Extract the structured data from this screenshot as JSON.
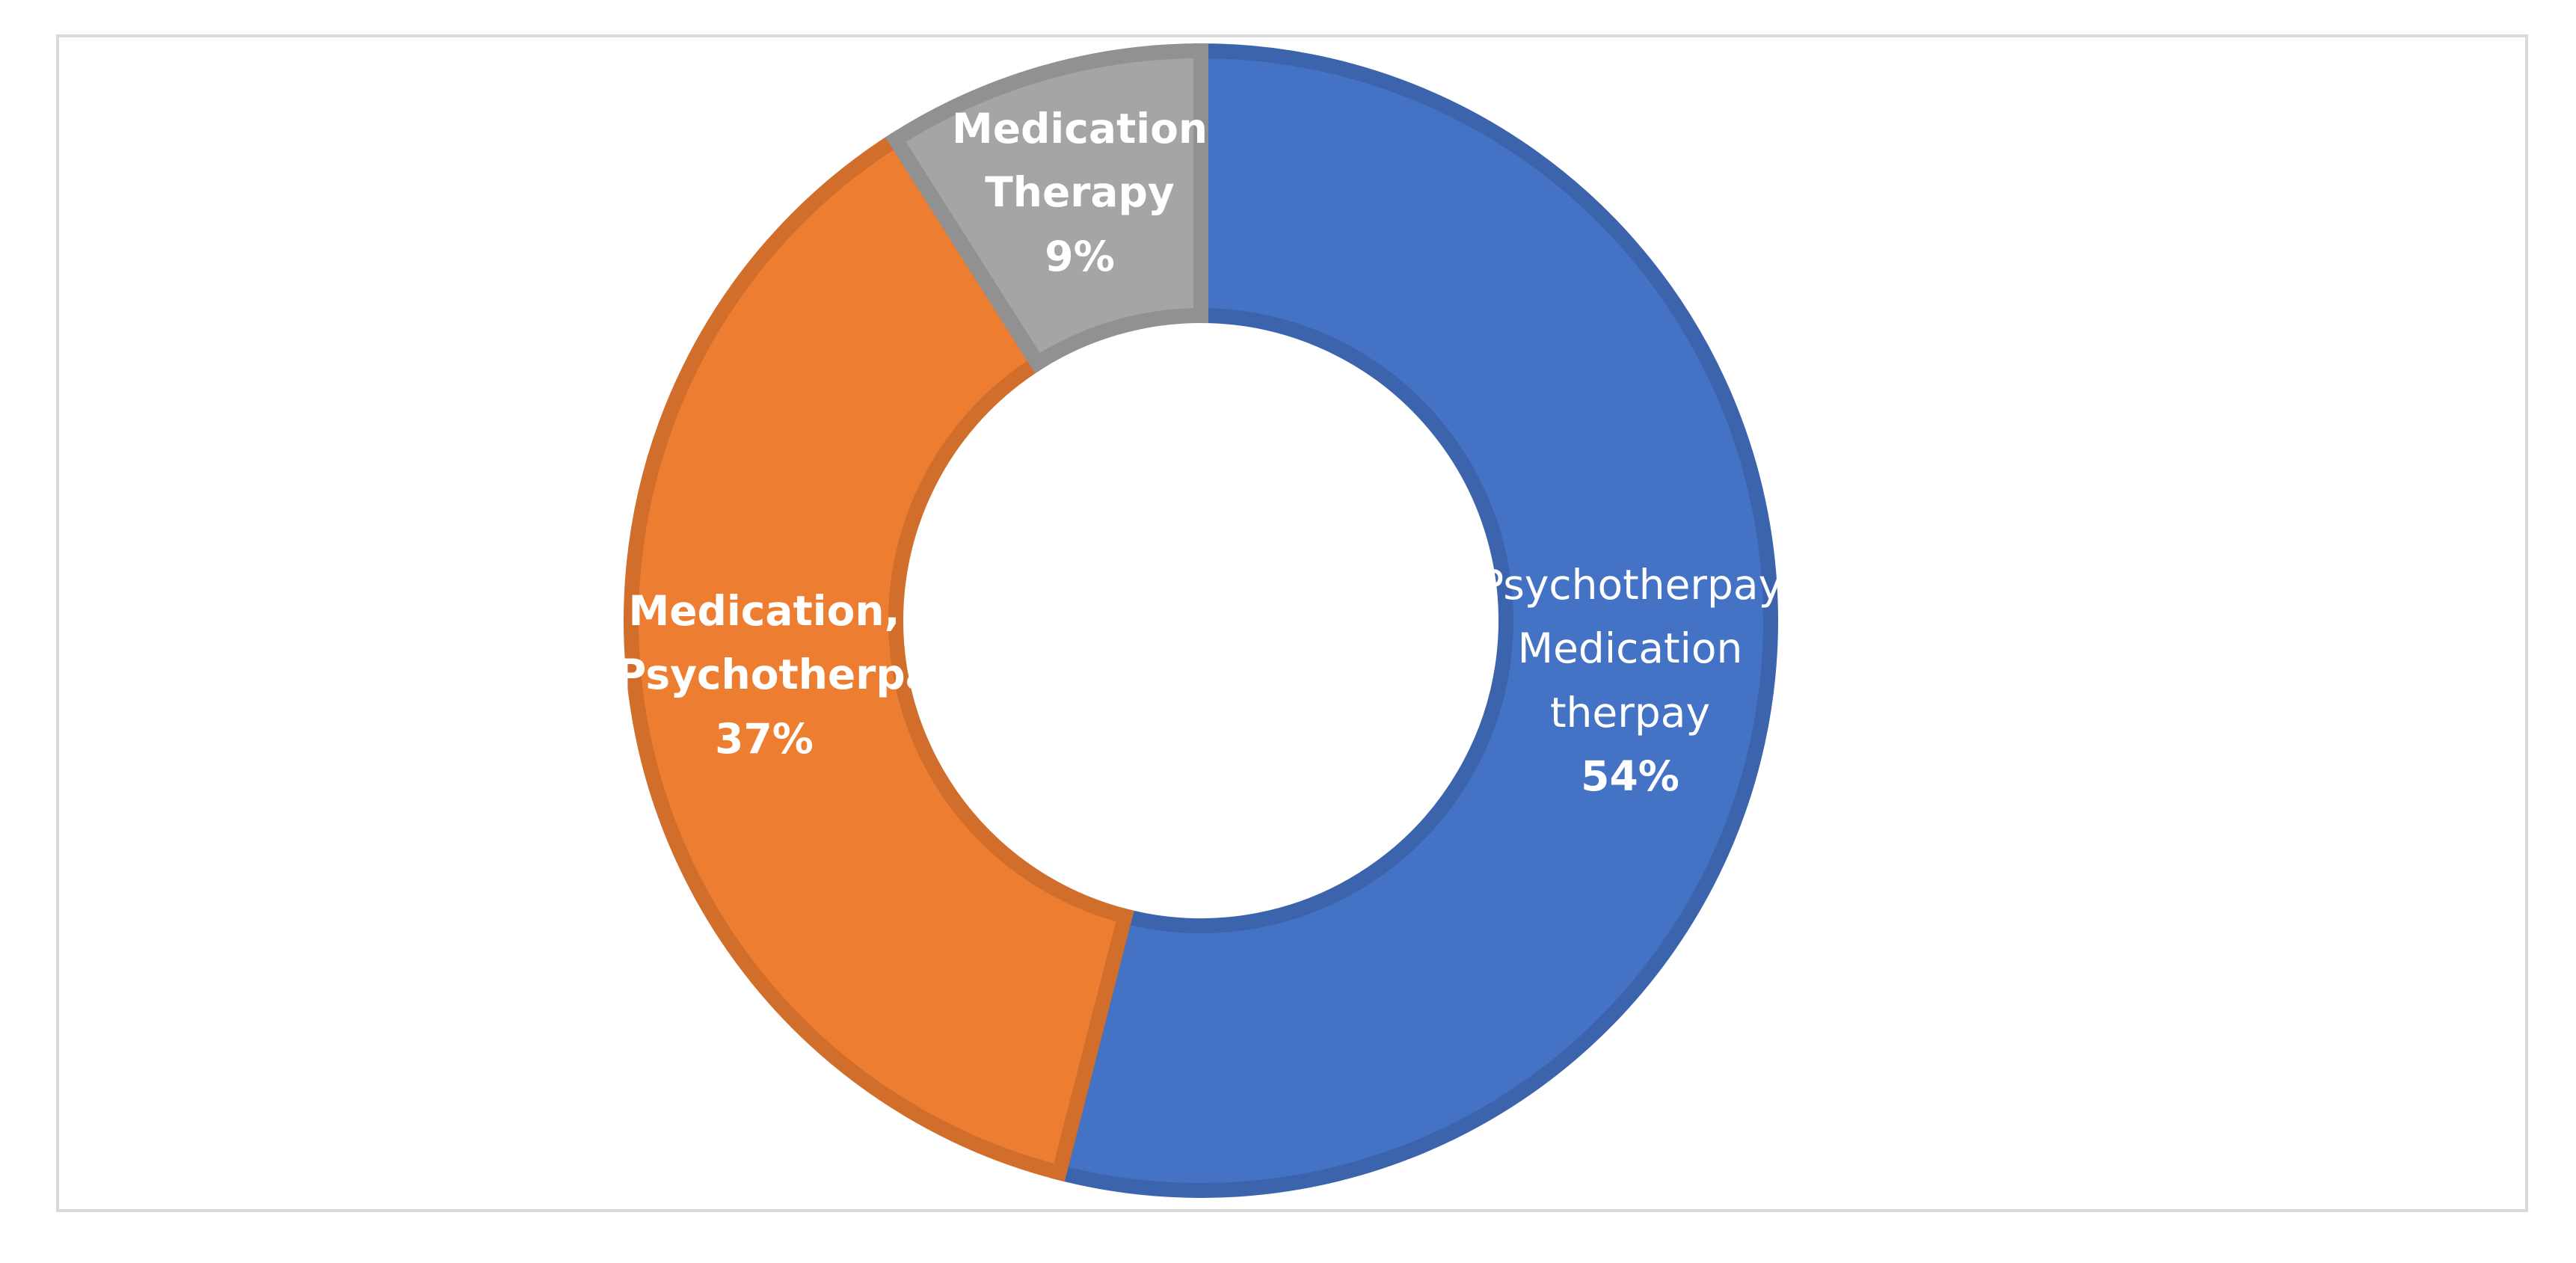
{
  "chart_data": {
    "type": "donut",
    "categories": [
      "Psychotherpay, Medication therpay",
      "Medication, Psychotherpay,",
      "Medication Therapy"
    ],
    "values": [
      54,
      37,
      9
    ],
    "value_labels": [
      "54%",
      "37%",
      "9%"
    ],
    "colors": [
      "#4472c4",
      "#ed7d31",
      "#a5a5a5"
    ]
  }
}
